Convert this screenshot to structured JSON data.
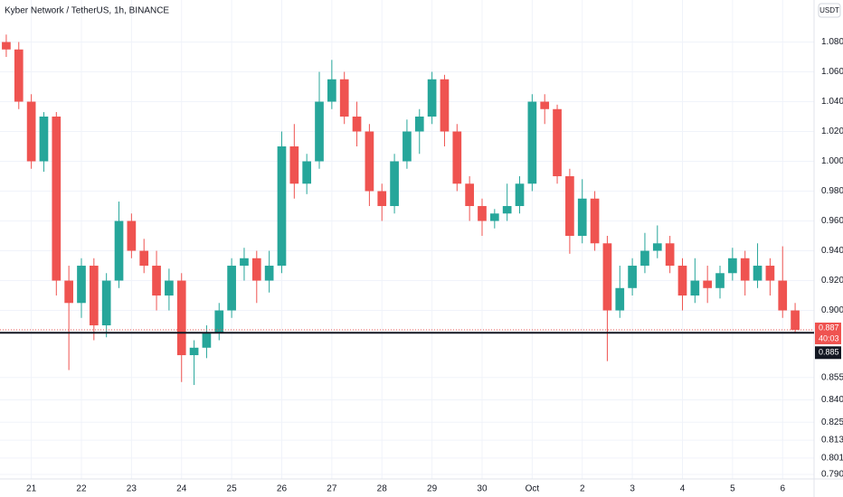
{
  "chart_data": {
    "type": "candlestick",
    "title": "Kyber Network / TetherUS, 1h, BINANCE",
    "currency_button": "USDT",
    "up_color": "#26a69a",
    "down_color": "#ef5350",
    "categories": [
      null,
      null,
      "21",
      null,
      null,
      null,
      "22",
      null,
      null,
      null,
      "23",
      null,
      null,
      null,
      "24",
      null,
      null,
      null,
      "25",
      null,
      null,
      null,
      "26",
      null,
      null,
      null,
      "27",
      null,
      null,
      null,
      "28",
      null,
      null,
      null,
      "29",
      null,
      null,
      null,
      "30",
      null,
      null,
      null,
      "Oct",
      null,
      null,
      null,
      "2",
      null,
      null,
      null,
      "3",
      null,
      null,
      null,
      "4",
      null,
      null,
      null,
      "5",
      null,
      null,
      null,
      "6",
      null
    ],
    "ohlc": [
      [
        1.08,
        1.085,
        1.07,
        1.075
      ],
      [
        1.075,
        1.08,
        1.035,
        1.04
      ],
      [
        1.04,
        1.045,
        0.995,
        1.0
      ],
      [
        1.0,
        1.033,
        0.993,
        1.03
      ],
      [
        1.03,
        1.033,
        0.91,
        0.92
      ],
      [
        0.92,
        0.93,
        0.86,
        0.905
      ],
      [
        0.905,
        0.935,
        0.895,
        0.93
      ],
      [
        0.93,
        0.935,
        0.88,
        0.89
      ],
      [
        0.89,
        0.925,
        0.882,
        0.92
      ],
      [
        0.92,
        0.973,
        0.915,
        0.96
      ],
      [
        0.96,
        0.965,
        0.935,
        0.94
      ],
      [
        0.94,
        0.948,
        0.925,
        0.93
      ],
      [
        0.93,
        0.94,
        0.9,
        0.91
      ],
      [
        0.91,
        0.928,
        0.9,
        0.92
      ],
      [
        0.92,
        0.925,
        0.852,
        0.87
      ],
      [
        0.87,
        0.88,
        0.85,
        0.875
      ],
      [
        0.875,
        0.89,
        0.868,
        0.885
      ],
      [
        0.885,
        0.905,
        0.88,
        0.9
      ],
      [
        0.9,
        0.935,
        0.895,
        0.93
      ],
      [
        0.93,
        0.942,
        0.92,
        0.935
      ],
      [
        0.935,
        0.94,
        0.905,
        0.92
      ],
      [
        0.92,
        0.94,
        0.912,
        0.93
      ],
      [
        0.93,
        1.02,
        0.925,
        1.01
      ],
      [
        1.01,
        1.025,
        0.975,
        0.985
      ],
      [
        0.985,
        1.005,
        0.978,
        1.0
      ],
      [
        1.0,
        1.06,
        0.995,
        1.04
      ],
      [
        1.04,
        1.068,
        1.035,
        1.055
      ],
      [
        1.055,
        1.06,
        1.025,
        1.03
      ],
      [
        1.03,
        1.04,
        1.01,
        1.02
      ],
      [
        1.02,
        1.025,
        0.97,
        0.98
      ],
      [
        0.98,
        0.985,
        0.96,
        0.97
      ],
      [
        0.97,
        1.005,
        0.965,
        1.0
      ],
      [
        1.0,
        1.028,
        0.995,
        1.02
      ],
      [
        1.02,
        1.035,
        1.005,
        1.03
      ],
      [
        1.03,
        1.06,
        1.025,
        1.055
      ],
      [
        1.055,
        1.058,
        1.01,
        1.02
      ],
      [
        1.02,
        1.025,
        0.98,
        0.985
      ],
      [
        0.985,
        0.99,
        0.96,
        0.97
      ],
      [
        0.97,
        0.975,
        0.95,
        0.96
      ],
      [
        0.96,
        0.968,
        0.955,
        0.965
      ],
      [
        0.965,
        0.985,
        0.96,
        0.97
      ],
      [
        0.97,
        0.99,
        0.965,
        0.985
      ],
      [
        0.985,
        1.045,
        0.98,
        1.04
      ],
      [
        1.04,
        1.045,
        1.025,
        1.035
      ],
      [
        1.035,
        1.038,
        0.985,
        0.99
      ],
      [
        0.99,
        0.995,
        0.938,
        0.95
      ],
      [
        0.95,
        0.988,
        0.945,
        0.975
      ],
      [
        0.975,
        0.98,
        0.94,
        0.945
      ],
      [
        0.945,
        0.95,
        0.866,
        0.9
      ],
      [
        0.9,
        0.93,
        0.895,
        0.915
      ],
      [
        0.915,
        0.935,
        0.91,
        0.93
      ],
      [
        0.93,
        0.952,
        0.925,
        0.94
      ],
      [
        0.94,
        0.957,
        0.935,
        0.945
      ],
      [
        0.945,
        0.95,
        0.925,
        0.93
      ],
      [
        0.93,
        0.935,
        0.9,
        0.91
      ],
      [
        0.91,
        0.935,
        0.905,
        0.92
      ],
      [
        0.92,
        0.93,
        0.905,
        0.915
      ],
      [
        0.915,
        0.93,
        0.908,
        0.925
      ],
      [
        0.925,
        0.942,
        0.92,
        0.935
      ],
      [
        0.935,
        0.94,
        0.91,
        0.92
      ],
      [
        0.92,
        0.945,
        0.915,
        0.93
      ],
      [
        0.93,
        0.935,
        0.91,
        0.92
      ],
      [
        0.92,
        0.943,
        0.895,
        0.9
      ],
      [
        0.9,
        0.905,
        0.885,
        0.887
      ]
    ],
    "ylim": [
      0.787,
      1.09
    ],
    "yticks": [
      {
        "value": 1.08,
        "label": "1.080"
      },
      {
        "value": 1.06,
        "label": "1.060"
      },
      {
        "value": 1.04,
        "label": "1.040"
      },
      {
        "value": 1.02,
        "label": "1.020"
      },
      {
        "value": 1.0,
        "label": "1.000"
      },
      {
        "value": 0.98,
        "label": "0.980"
      },
      {
        "value": 0.96,
        "label": "0.960"
      },
      {
        "value": 0.94,
        "label": "0.940"
      },
      {
        "value": 0.92,
        "label": "0.920"
      },
      {
        "value": 0.9,
        "label": "0.900"
      },
      {
        "value": 0.855,
        "label": "0.855"
      },
      {
        "value": 0.84,
        "label": "0.840"
      },
      {
        "value": 0.825,
        "label": "0.825"
      },
      {
        "value": 0.813,
        "label": "0.813"
      },
      {
        "value": 0.801,
        "label": "0.801"
      },
      {
        "value": 0.79,
        "label": "0.790"
      }
    ],
    "grid": true,
    "last_price": {
      "value": 0.887,
      "label": "0.887"
    },
    "countdown": "40:03",
    "hline": {
      "value": 0.885,
      "label": "0.885",
      "color": "#131722"
    }
  }
}
